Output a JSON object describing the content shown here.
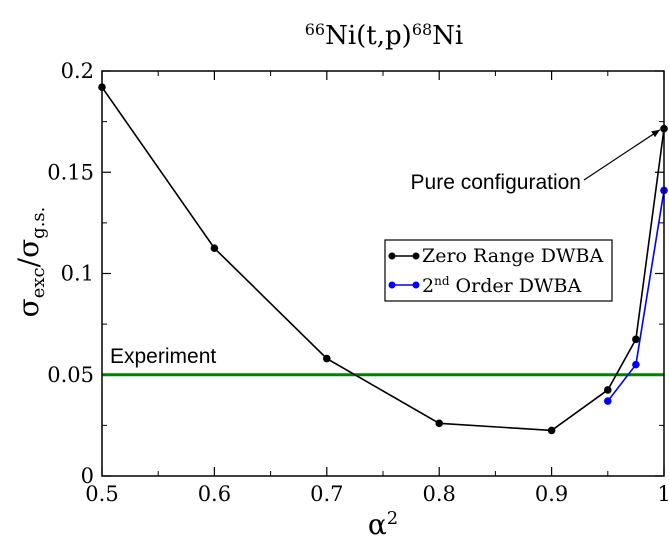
{
  "chart_data": {
    "type": "line",
    "title": {
      "base": "Ni(t,p)",
      "sup_left": "66",
      "sup_mid": "68",
      "tail": "Ni"
    },
    "xlabel": {
      "base": "α",
      "sup": "2"
    },
    "ylabel": {
      "num": "σ",
      "num_sub": "exc",
      "slash": "/σ",
      "den_sub": "g.s."
    },
    "xlim": [
      0.5,
      1.0
    ],
    "ylim": [
      0,
      0.2
    ],
    "xticks": [
      0.5,
      0.6,
      0.7,
      0.8,
      0.9,
      1.0
    ],
    "xtick_labels": [
      "0.5",
      "0.6",
      "0.7",
      "0.8",
      "0.9",
      "1"
    ],
    "yticks": [
      0,
      0.05,
      0.1,
      0.15,
      0.2
    ],
    "ytick_labels": [
      "0",
      "0.05",
      "0.1",
      "0.15",
      "0.2"
    ],
    "grid": false,
    "legend_position": "center-right",
    "series": [
      {
        "name": "Zero Range DWBA",
        "legend_text": "Zero Range DWBA",
        "color": "#000000",
        "x": [
          0.5,
          0.6,
          0.7,
          0.8,
          0.9,
          0.95,
          0.975,
          1.0
        ],
        "y": [
          0.192,
          0.1125,
          0.058,
          0.026,
          0.0225,
          0.0425,
          0.0675,
          0.1715
        ]
      },
      {
        "name": "2nd Order DWBA",
        "legend_text": {
          "pre": "2",
          "sup": "nd",
          "post": " Order DWBA"
        },
        "color": "#0000ff",
        "x": [
          0.95,
          0.975,
          1.0
        ],
        "y": [
          0.037,
          0.055,
          0.141
        ]
      }
    ],
    "reference_line": {
      "label": "Experiment",
      "y": 0.05,
      "color": "#008000"
    },
    "annotation": {
      "text": "Pure configuration",
      "x": 1.0,
      "y": 0.1715
    }
  }
}
